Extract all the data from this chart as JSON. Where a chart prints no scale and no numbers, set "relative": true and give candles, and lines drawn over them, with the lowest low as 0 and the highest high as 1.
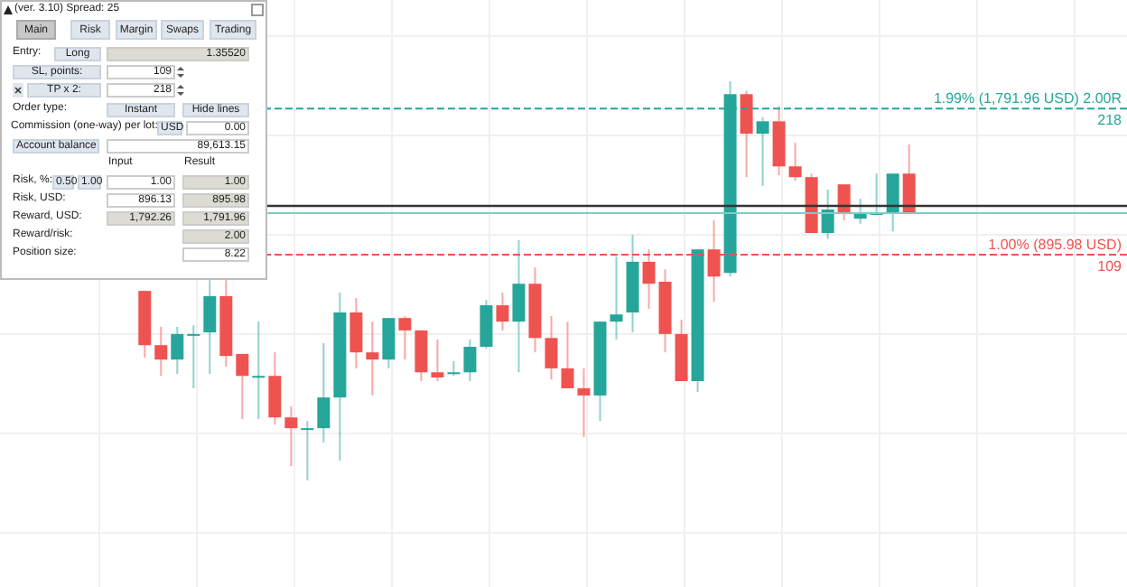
{
  "chart_data": [
    {
      "type": "other",
      "title": "(ver. 3.10) Spread: 25",
      "annotations": [
        "Main",
        "Risk",
        "Margin",
        "Swaps",
        "Trading",
        "Entry:",
        "Long",
        "1.35520",
        "SL, points:",
        "109",
        "TP x 2:",
        "218",
        "Order type:",
        "Instant",
        "Hide lines",
        "Commission (one-way) per lot:",
        "USD",
        "0.00",
        "Account balance",
        "89,613.15",
        "Input",
        "Result",
        "Risk, %:",
        "0.50",
        "1.00",
        "1.00",
        "1.00",
        "Risk, USD:",
        "896.13",
        "895.98",
        "Reward, USD:",
        "1,792.26",
        "1,791.96",
        "Reward/risk:",
        "2.00",
        "Position size:",
        "8.22"
      ]
    },
    {
      "type": "candlestick",
      "relative": true,
      "grid": true,
      "categories": [
        null,
        null,
        null,
        null,
        null,
        null,
        null,
        null,
        null,
        null,
        null,
        null,
        null,
        null,
        null,
        null,
        null,
        null,
        null,
        null,
        null,
        null,
        null,
        null,
        null,
        null,
        null,
        null,
        null,
        null,
        null,
        null,
        null,
        null,
        null,
        null,
        null,
        null,
        null,
        null,
        null,
        null,
        null,
        null,
        null,
        null,
        null,
        null,
        null,
        null,
        null,
        null,
        null,
        null,
        null,
        null
      ],
      "ohlc": [
        null,
        null,
        null,
        null,
        null,
        null,
        null,
        null,
        [
          0.475,
          0.475,
          0.308,
          0.339
        ],
        [
          0.339,
          0.385,
          0.262,
          0.303
        ],
        [
          0.303,
          0.385,
          0.267,
          0.367
        ],
        [
          0.367,
          0.389,
          0.231,
          0.367
        ],
        [
          0.371,
          0.502,
          0.267,
          0.462
        ],
        [
          0.462,
          0.502,
          0.285,
          0.312
        ],
        [
          0.317,
          0.317,
          0.154,
          0.262
        ],
        [
          0.262,
          0.398,
          0.154,
          0.262
        ],
        [
          0.262,
          0.321,
          0.14,
          0.158
        ],
        [
          0.158,
          0.186,
          0.036,
          0.131
        ],
        [
          0.131,
          0.149,
          0,
          0.131
        ],
        [
          0.131,
          0.344,
          0.095,
          0.208
        ],
        [
          0.208,
          0.471,
          0.05,
          0.421
        ],
        [
          0.421,
          0.457,
          0.281,
          0.321
        ],
        [
          0.321,
          0.398,
          0.213,
          0.303
        ],
        [
          0.303,
          0.407,
          0.281,
          0.407
        ],
        [
          0.407,
          0.412,
          0.303,
          0.376
        ],
        [
          0.376,
          0.376,
          0.249,
          0.271
        ],
        [
          0.271,
          0.353,
          0.249,
          0.258
        ],
        [
          0.271,
          0.299,
          0.262,
          0.271
        ],
        [
          0.271,
          0.353,
          0.249,
          0.335
        ],
        [
          0.335,
          0.452,
          0.33,
          0.439
        ],
        [
          0.439,
          0.471,
          0.376,
          0.398
        ],
        [
          0.398,
          0.602,
          0.271,
          0.493
        ],
        [
          0.493,
          0.534,
          0.321,
          0.357
        ],
        [
          0.357,
          0.412,
          0.253,
          0.281
        ],
        [
          0.281,
          0.398,
          0.231,
          0.231
        ],
        [
          0.231,
          0.281,
          0.109,
          0.213
        ],
        [
          0.213,
          0.398,
          0.149,
          0.398
        ],
        [
          0.398,
          0.561,
          0.353,
          0.416
        ],
        [
          0.421,
          0.615,
          0.371,
          0.548
        ],
        [
          0.548,
          0.579,
          0.43,
          0.493
        ],
        [
          0.498,
          0.529,
          0.321,
          0.367
        ],
        [
          0.367,
          0.403,
          0.249,
          0.249
        ],
        [
          0.249,
          0.579,
          0.222,
          0.579
        ],
        [
          0.579,
          0.652,
          0.448,
          0.511
        ],
        [
          0.52,
          1,
          0.511,
          0.968
        ],
        [
          0.968,
          0.977,
          0.76,
          0.869
        ],
        [
          0.869,
          0.91,
          0.738,
          0.9
        ],
        [
          0.9,
          0.937,
          0.765,
          0.787
        ],
        [
          0.787,
          0.846,
          0.751,
          0.76
        ],
        [
          0.76,
          0.769,
          0.62,
          0.62
        ],
        [
          0.62,
          0.729,
          0.606,
          0.679
        ],
        [
          0.742,
          0.742,
          0.652,
          0.67
        ],
        [
          0.656,
          0.706,
          0.643,
          0.67
        ],
        [
          0.67,
          0.769,
          0.67,
          0.67
        ],
        [
          0.67,
          0.769,
          0.624,
          0.769
        ],
        [
          0.769,
          0.842,
          0.67,
          0.67
        ]
      ],
      "ref_lines": [
        {
          "axis": "y",
          "value": 0.932,
          "label": "1.99% (1,791.96 USD) 2.00R",
          "color": "#26a69a",
          "line_style": "dashed"
        },
        {
          "axis": "y",
          "value": 0.688,
          "color": "#333333",
          "line_style": "solid"
        },
        {
          "axis": "y",
          "value": 0.67,
          "color": "#80cbc4",
          "line_style": "solid"
        },
        {
          "axis": "y",
          "value": 0.566,
          "label": "1.00% (895.98 USD)",
          "color": "#ef5350",
          "line_style": "dashed"
        }
      ],
      "annotations": [
        {
          "text": "218",
          "y": 0.932
        },
        {
          "text": "109",
          "y": 0.566
        }
      ]
    }
  ]
}
